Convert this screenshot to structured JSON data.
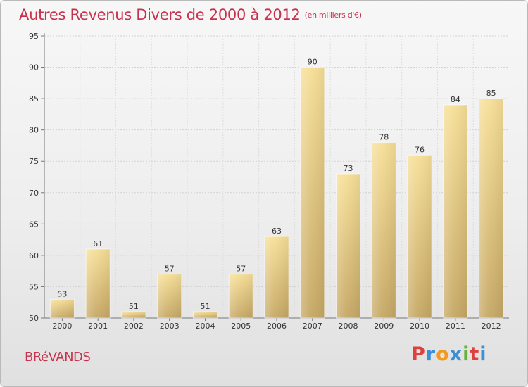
{
  "header": {
    "title": "Autres Revenus Divers de 2000 à 2012",
    "subtitle": "(en milliers d'€)"
  },
  "footer": {
    "town": "BRéVANDS",
    "logo_text": "Proxiti"
  },
  "colors": {
    "title": "#c8314d",
    "bar_light": "#f7df97",
    "bar_dark": "#c6a865",
    "logo": [
      "#e0403c",
      "#3a8fd6",
      "#f29a1c",
      "#3a8fd6",
      "#64b23b",
      "#e0403c",
      "#3a8fd6"
    ]
  },
  "chart_data": {
    "type": "bar",
    "title": "Autres Revenus Divers de 2000 à 2012",
    "subtitle": "(en milliers d'€)",
    "categories": [
      "2000",
      "2001",
      "2002",
      "2003",
      "2004",
      "2005",
      "2006",
      "2007",
      "2008",
      "2009",
      "2010",
      "2011",
      "2012"
    ],
    "values": [
      53,
      61,
      51,
      57,
      51,
      57,
      63,
      90,
      73,
      78,
      76,
      84,
      85
    ],
    "ylim": [
      50,
      95
    ],
    "yticks": [
      50,
      55,
      60,
      65,
      70,
      75,
      80,
      85,
      90,
      95
    ],
    "grid": true
  }
}
